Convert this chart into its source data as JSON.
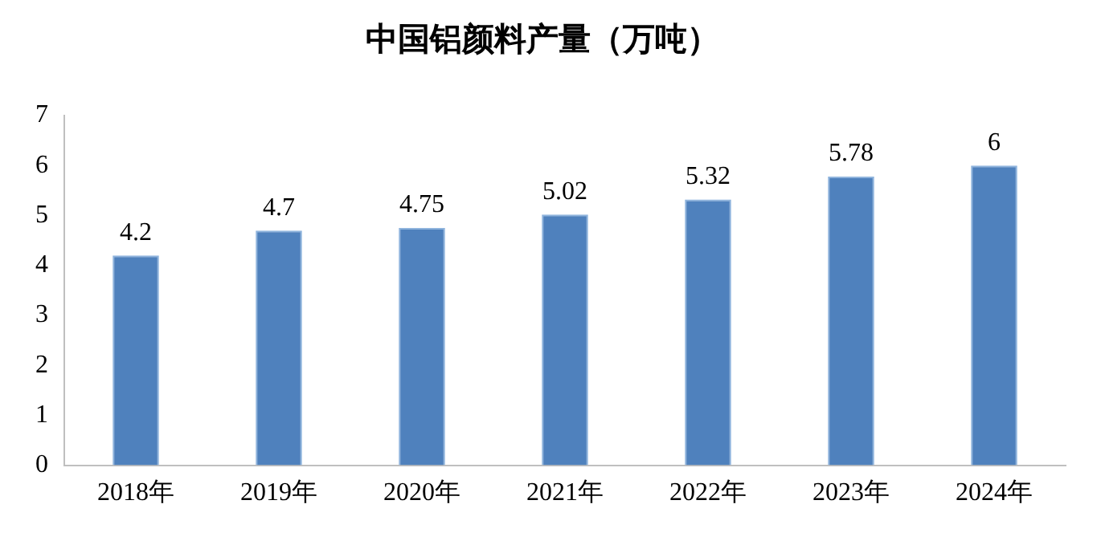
{
  "chart_data": {
    "type": "bar",
    "title": "中国铝颜料产量（万吨）",
    "categories": [
      "2018年",
      "2019年",
      "2020年",
      "2021年",
      "2022年",
      "2023年",
      "2024年"
    ],
    "values": [
      4.2,
      4.7,
      4.75,
      5.02,
      5.32,
      5.78,
      6
    ],
    "color": "#4f81bd",
    "ylim": [
      0,
      7
    ],
    "yticks": [
      0,
      1,
      2,
      3,
      4,
      5,
      6,
      7
    ],
    "grid": false,
    "data_labels": true,
    "legend": false
  }
}
